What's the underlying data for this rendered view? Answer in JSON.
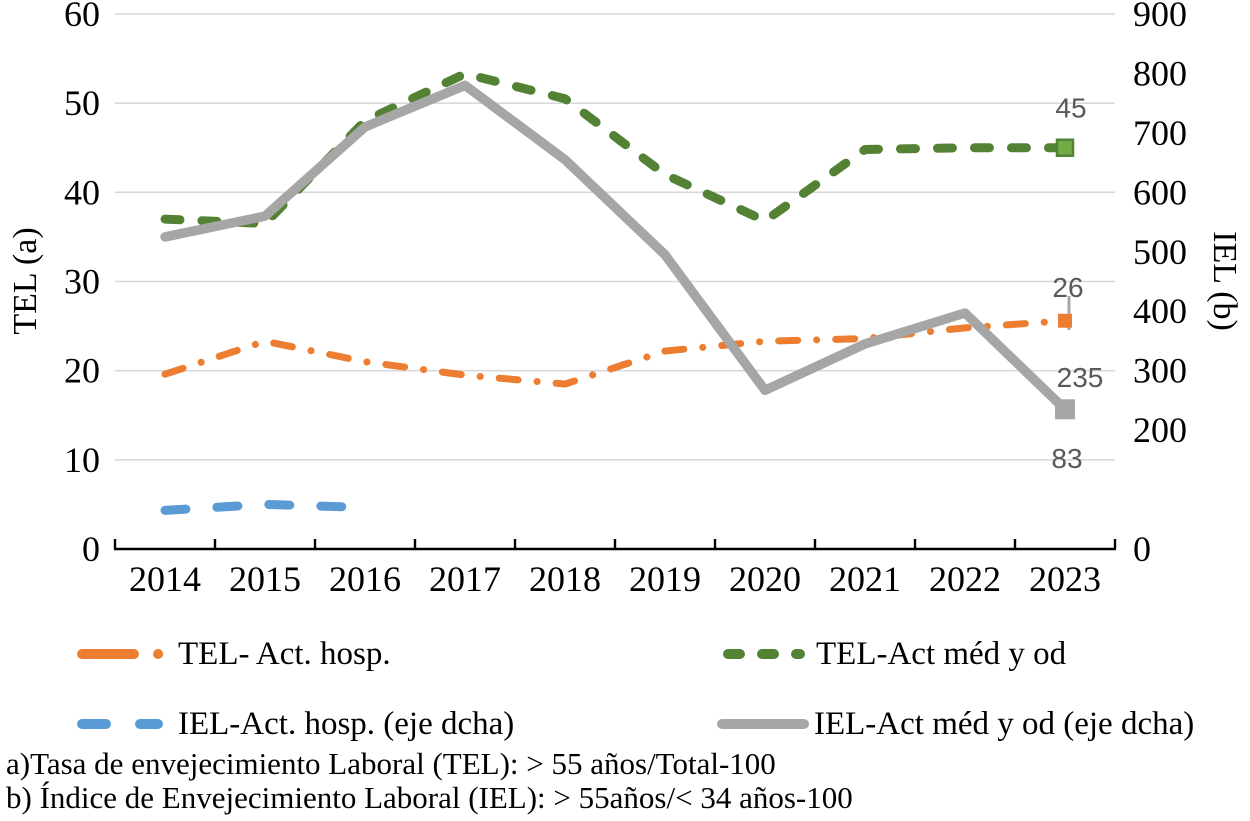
{
  "chart_data": {
    "type": "line",
    "categories": [
      "2014",
      "2015",
      "2016",
      "2017",
      "2018",
      "2019",
      "2020",
      "2021",
      "2022",
      "2023"
    ],
    "left_axis": {
      "label": "TEL (a)",
      "min": 0,
      "max": 60,
      "ticks": [
        0,
        10,
        20,
        30,
        40,
        50,
        60
      ]
    },
    "right_axis": {
      "label": "IEL (b)",
      "min": 0,
      "max": 900,
      "ticks": [
        900,
        800,
        700,
        600,
        500,
        400,
        300,
        200,
        0
      ]
    },
    "grid": true,
    "legend_position": "bottom",
    "colors": {
      "orange": "#ED7D31",
      "green": "#548235",
      "green_marker_fill": "#70AD47",
      "blue": "#5B9BD5",
      "gray": "#A6A6A6",
      "gridline": "#D9D9D9",
      "axis_line": "#000000",
      "data_label": "#595959"
    },
    "series": [
      {
        "name": "TEL- Act. hosp.",
        "axis": "left",
        "color": "#ED7D31",
        "dash": "dash-dot",
        "values": [
          19.6,
          23.3,
          21.0,
          19.5,
          18.5,
          22.2,
          23.3,
          23.6,
          24.8,
          25.6
        ],
        "end_label": "26",
        "end_marker": true
      },
      {
        "name": "TEL-Act méd y od",
        "axis": "left",
        "color": "#548235",
        "dash": "dashed",
        "values": [
          37.0,
          36.5,
          48.0,
          53.3,
          50.5,
          42.0,
          36.8,
          44.8,
          45.0,
          45.0
        ],
        "end_label": "45",
        "end_marker": true,
        "marker_fill": "#70AD47"
      },
      {
        "name": "IEL-Act. hosp. (eje dcha)",
        "axis": "right",
        "color": "#5B9BD5",
        "dash": "dashed",
        "values": [
          65,
          75,
          70,
          null,
          null,
          null,
          null,
          null,
          null,
          83
        ],
        "end_label": "83",
        "end_marker": false
      },
      {
        "name": "IEL-Act méd y od (eje dcha)",
        "axis": "right",
        "color": "#A6A6A6",
        "dash": "solid",
        "values": [
          525,
          560,
          710,
          780,
          655,
          495,
          267,
          345,
          397,
          235
        ],
        "end_label": "235",
        "end_marker": true
      }
    ],
    "footnotes": [
      "a)Tasa de envejecimiento Laboral (TEL): > 55 años/Total-100",
      "b) Índice de Envejecimiento Laboral (IEL): > 55años/< 34 años-100"
    ]
  }
}
